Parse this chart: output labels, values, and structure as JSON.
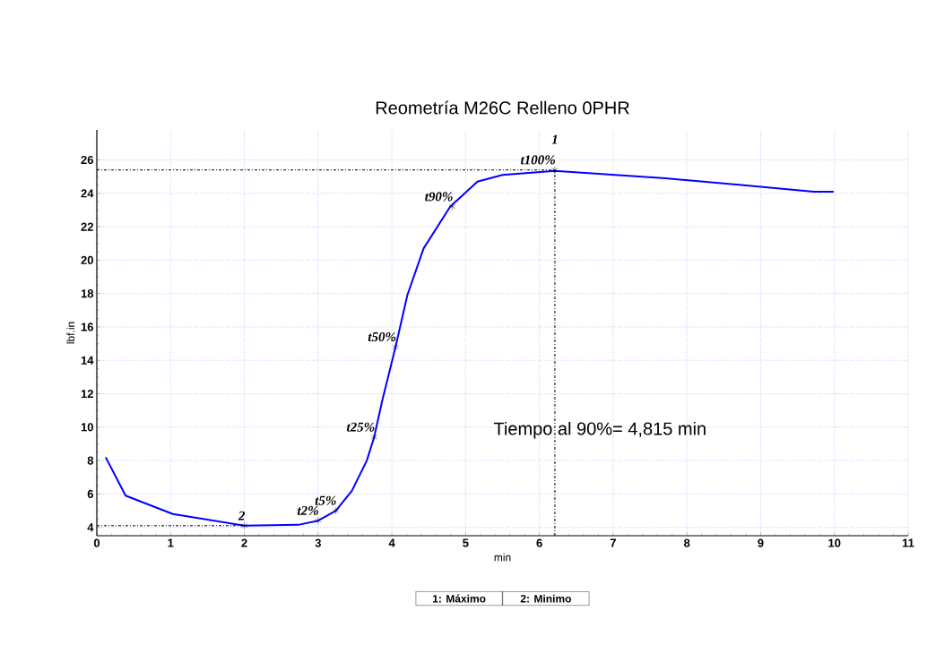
{
  "chart_data": {
    "type": "line",
    "title": "Reometría M26C Relleno 0PHR",
    "xlabel": "min",
    "ylabel": "lbf.in",
    "xlim": [
      0,
      11
    ],
    "ylim": [
      3.5,
      27.8
    ],
    "xticks": [
      0,
      1,
      2,
      3,
      4,
      5,
      6,
      7,
      8,
      9,
      10,
      11
    ],
    "yticks": [
      4,
      6,
      8,
      10,
      12,
      14,
      16,
      18,
      20,
      22,
      24,
      26
    ],
    "grid": true,
    "series": [
      {
        "color": "#0000ff",
        "x": [
          0.12,
          0.39,
          1.03,
          2.0,
          2.73,
          3.0,
          3.24,
          3.46,
          3.66,
          3.76,
          3.87,
          4.05,
          4.21,
          4.43,
          4.79,
          5.16,
          5.5,
          6.21,
          7.03,
          7.71,
          8.74,
          9.72,
          9.99
        ],
        "values": [
          8.2,
          5.9,
          4.8,
          4.1,
          4.15,
          4.4,
          5.0,
          6.2,
          8.0,
          9.4,
          11.6,
          14.8,
          17.9,
          20.7,
          23.2,
          24.7,
          25.1,
          25.35,
          25.1,
          24.9,
          24.5,
          24.1,
          24.1
        ]
      },
      {
        "type": "scatter",
        "marker": "cross",
        "color": "#000000",
        "x": [
          2.0,
          3.0,
          3.24,
          3.76,
          4.05,
          4.82,
          6.21
        ],
        "values": [
          4.1,
          4.4,
          5.0,
          9.4,
          14.8,
          23.2,
          25.4
        ]
      },
      {
        "line_style": "dashed",
        "color": "#000000",
        "x": [
          0,
          6.21
        ],
        "values": [
          25.4,
          25.4
        ]
      },
      {
        "line_style": "dashed",
        "color": "#000000",
        "x": [
          6.21,
          6.21
        ],
        "values": [
          3.5,
          25.4
        ]
      },
      {
        "line_style": "dashed",
        "color": "#000000",
        "x": [
          0,
          2.0
        ],
        "values": [
          4.1,
          4.1
        ]
      }
    ],
    "annotations": [
      {
        "text": "t2%",
        "x": 3.0,
        "y": 4.4
      },
      {
        "text": "t5%",
        "x": 3.24,
        "y": 5.0
      },
      {
        "text": "t25%",
        "x": 3.76,
        "y": 9.4
      },
      {
        "text": "t50%",
        "x": 4.05,
        "y": 14.8
      },
      {
        "text": "t90%",
        "x": 4.82,
        "y": 23.2
      },
      {
        "text": "t100%",
        "x": 6.21,
        "y": 25.4
      },
      {
        "text": "1",
        "x": 6.21,
        "y": 25.4
      },
      {
        "text": "2",
        "x": 2.0,
        "y": 4.1
      },
      "Tiempo al 90%= 4,815 min",
      "1: Máximo",
      "2: Minimo"
    ]
  }
}
